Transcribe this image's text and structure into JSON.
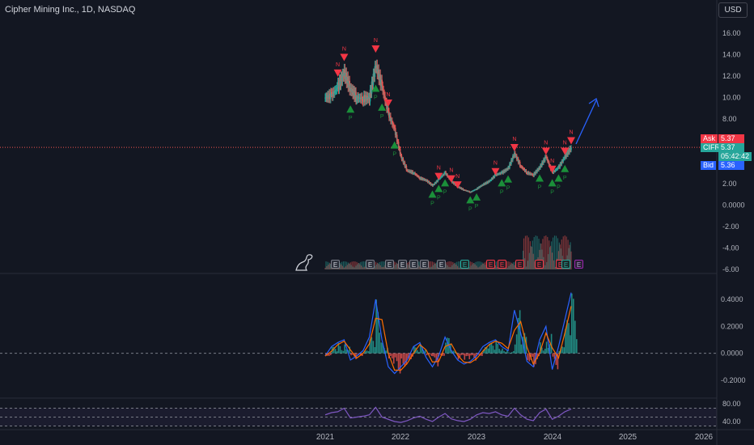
{
  "header": {
    "title": "Cipher Mining Inc., 1D, NASDAQ"
  },
  "currency_button": "USD",
  "price_tags": {
    "ask_label": "Ask",
    "ask_value": "5.37",
    "symbol_label": "CIFR",
    "symbol_value": "5.37",
    "countdown": "05:42:42",
    "bid_label": "Bid",
    "bid_value": "5.36"
  },
  "price_axis_labels": [
    "16.00",
    "14.00",
    "12.00",
    "10.00",
    "8.00",
    "6.00",
    "4.00",
    "2.00",
    "0.0000",
    "-2.00",
    "-4.00",
    "-6.00"
  ],
  "macd_axis_labels": [
    "0.4000",
    "0.2000",
    "0.0000",
    "-0.2000"
  ],
  "rsi_axis_labels": [
    "80.00",
    "40.00"
  ],
  "time_axis_labels": [
    "2021",
    "2022",
    "2023",
    "2024",
    "2025",
    "2026"
  ],
  "signal_labels": {
    "top": "N",
    "bottom": "P"
  },
  "events": [
    {
      "letter": "E",
      "style": "grey"
    },
    {
      "letter": "E",
      "style": "grey"
    },
    {
      "letter": "E",
      "style": "grey"
    },
    {
      "letter": "E",
      "style": "grey"
    },
    {
      "letter": "E",
      "style": "grey"
    },
    {
      "letter": "E",
      "style": "grey"
    },
    {
      "letter": "E",
      "style": "grey"
    },
    {
      "letter": "E",
      "style": "green"
    },
    {
      "letter": "E",
      "style": "red"
    },
    {
      "letter": "E",
      "style": "red"
    },
    {
      "letter": "E",
      "style": "red"
    },
    {
      "letter": "E",
      "style": "red"
    },
    {
      "letter": "E",
      "style": "red"
    },
    {
      "letter": "E",
      "style": "green"
    },
    {
      "letter": "E",
      "style": "purple"
    }
  ],
  "colors": {
    "up": "#26a69a",
    "down": "#ef5350",
    "macd": "#2962ff",
    "signal": "#ff6d00",
    "rsi": "#7e57c2",
    "projection": "#2962ff"
  },
  "chart_data": {
    "type": "line",
    "x": [
      "2021-01",
      "2021-02",
      "2021-03",
      "2021-04",
      "2021-05",
      "2021-06",
      "2021-07",
      "2021-08",
      "2021-09",
      "2021-10",
      "2021-11",
      "2021-12",
      "2022-01",
      "2022-02",
      "2022-03",
      "2022-04",
      "2022-05",
      "2022-06",
      "2022-07",
      "2022-08",
      "2022-09",
      "2022-10",
      "2022-11",
      "2022-12",
      "2023-01",
      "2023-02",
      "2023-03",
      "2023-04",
      "2023-05",
      "2023-06",
      "2023-07",
      "2023-08",
      "2023-09",
      "2023-10",
      "2023-11",
      "2023-12",
      "2024-01",
      "2024-02",
      "2024-03",
      "2024-04"
    ],
    "series": [
      {
        "values": [
          10.0,
          10.2,
          11.0,
          12.3,
          10.8,
          10.0,
          9.9,
          10.0,
          13.0,
          11.0,
          8.5,
          7.0,
          4.5,
          3.2,
          3.0,
          2.5,
          2.3,
          1.8,
          2.4,
          3.0,
          2.2,
          1.7,
          1.4,
          1.2,
          1.5,
          1.9,
          2.2,
          2.8,
          3.0,
          3.4,
          4.8,
          3.6,
          3.0,
          2.8,
          3.5,
          4.5,
          3.0,
          3.5,
          4.5,
          5.37
        ]
      }
    ],
    "macd": [
      -0.02,
      0.05,
      0.08,
      0.1,
      -0.05,
      -0.02,
      0.02,
      0.12,
      0.4,
      0.1,
      -0.1,
      -0.15,
      -0.1,
      -0.05,
      0.05,
      0.08,
      -0.03,
      -0.1,
      -0.02,
      0.12,
      0.02,
      -0.05,
      -0.08,
      -0.06,
      -0.02,
      0.05,
      0.08,
      0.1,
      0.05,
      0.02,
      0.32,
      0.15,
      -0.06,
      -0.1,
      0.1,
      0.2,
      -0.12,
      0.05,
      0.25,
      0.45
    ],
    "rsi": [
      55,
      60,
      62,
      70,
      48,
      50,
      52,
      55,
      72,
      50,
      45,
      40,
      38,
      42,
      48,
      52,
      45,
      40,
      50,
      58,
      46,
      42,
      40,
      45,
      55,
      60,
      58,
      62,
      55,
      52,
      70,
      55,
      45,
      42,
      60,
      68,
      45,
      52,
      62,
      68
    ],
    "ylim": [
      -6,
      16
    ],
    "xlabel": "",
    "ylabel": ""
  }
}
